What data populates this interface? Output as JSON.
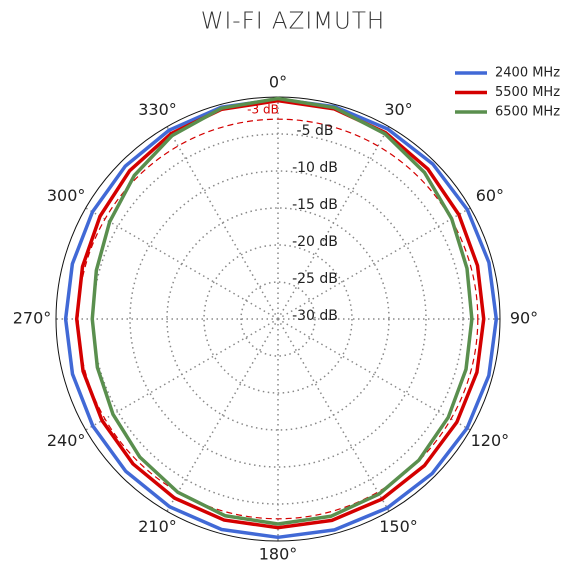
{
  "chart_data": {
    "type": "polar",
    "title": "WI-FI AZIMUTH",
    "x": [
      0,
      15,
      30,
      45,
      60,
      75,
      90,
      105,
      120,
      135,
      150,
      165,
      180,
      195,
      210,
      225,
      240,
      255,
      270,
      285,
      300,
      315,
      330,
      345
    ],
    "series": [
      {
        "name": "2400 MHz",
        "color": "#4169d6",
        "values": [
          -0.3,
          -0.31,
          -0.35,
          -0.4,
          -0.45,
          -0.49,
          -0.5,
          -0.5,
          -0.5,
          -0.5,
          -0.5,
          -0.5,
          -0.5,
          -0.55,
          -0.7,
          -0.9,
          -1.1,
          -1.25,
          -1.3,
          -1.23,
          -1.05,
          -0.8,
          -0.55,
          -0.37
        ]
      },
      {
        "name": "5500 MHz",
        "color": "#d40000",
        "values": [
          -0.5,
          -0.61,
          -0.93,
          -1.35,
          -1.78,
          -2.09,
          -2.2,
          -2.17,
          -2.1,
          -2.0,
          -1.9,
          -1.83,
          -1.8,
          -1.87,
          -2.05,
          -2.3,
          -2.55,
          -2.73,
          -2.8,
          -2.65,
          -2.23,
          -1.65,
          -1.08,
          -0.65
        ]
      },
      {
        "name": "6500 MHz",
        "color": "#5a8f4e",
        "values": [
          -0.2,
          -0.44,
          -1.1,
          -2.0,
          -2.9,
          -3.56,
          -3.8,
          -3.7,
          -3.43,
          -3.05,
          -2.68,
          -2.4,
          -2.3,
          -2.47,
          -2.95,
          -3.6,
          -4.25,
          -4.73,
          -4.9,
          -4.59,
          -3.73,
          -2.55,
          -1.38,
          -0.51
        ]
      }
    ],
    "ylim": [
      -30,
      0
    ],
    "yticks": [
      {
        "value": -30,
        "label": "-30 dB"
      },
      {
        "value": -25,
        "label": "-25 dB"
      },
      {
        "value": -20,
        "label": "-20 dB"
      },
      {
        "value": -15,
        "label": "-15 dB"
      },
      {
        "value": -10,
        "label": "-10 dB"
      },
      {
        "value": -5,
        "label": "-5 dB"
      }
    ],
    "xticks": [
      {
        "value": 0,
        "label": "0°"
      },
      {
        "value": 30,
        "label": "30°"
      },
      {
        "value": 60,
        "label": "60°"
      },
      {
        "value": 90,
        "label": "90°"
      },
      {
        "value": 120,
        "label": "120°"
      },
      {
        "value": 150,
        "label": "150°"
      },
      {
        "value": 180,
        "label": "180°"
      },
      {
        "value": 210,
        "label": "210°"
      },
      {
        "value": 240,
        "label": "240°"
      },
      {
        "value": 270,
        "label": "270°"
      },
      {
        "value": 300,
        "label": "300°"
      },
      {
        "value": 330,
        "label": "330°"
      }
    ],
    "reference": {
      "value": -3,
      "label": "-3 dB",
      "color": "#d40000"
    },
    "grid": true,
    "legend": "upper right"
  }
}
